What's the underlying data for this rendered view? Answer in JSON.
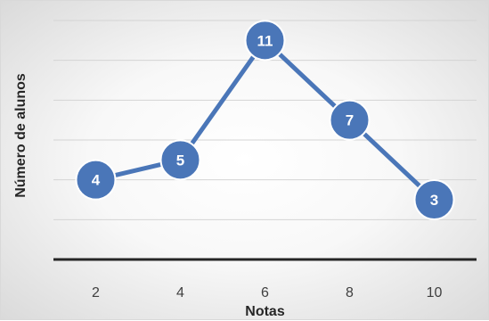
{
  "chart_data": {
    "type": "line",
    "title": "",
    "xlabel": "Notas",
    "ylabel": "Número de alunos",
    "categories": [
      "2",
      "4",
      "6",
      "8",
      "10"
    ],
    "series": [
      {
        "values": [
          4,
          5,
          11,
          7,
          3
        ]
      }
    ],
    "ylim": [
      0,
      12
    ],
    "y_gridline_step": 2,
    "y_tick_labels_shown": false,
    "grid": true,
    "legend": "none",
    "data_labels": "center",
    "colors": {
      "line": "#4a76b8",
      "marker_fill": "#4a76b8",
      "marker_edge": "#ffffff",
      "grid": "#d4d4d4",
      "axis": "#262626"
    }
  }
}
